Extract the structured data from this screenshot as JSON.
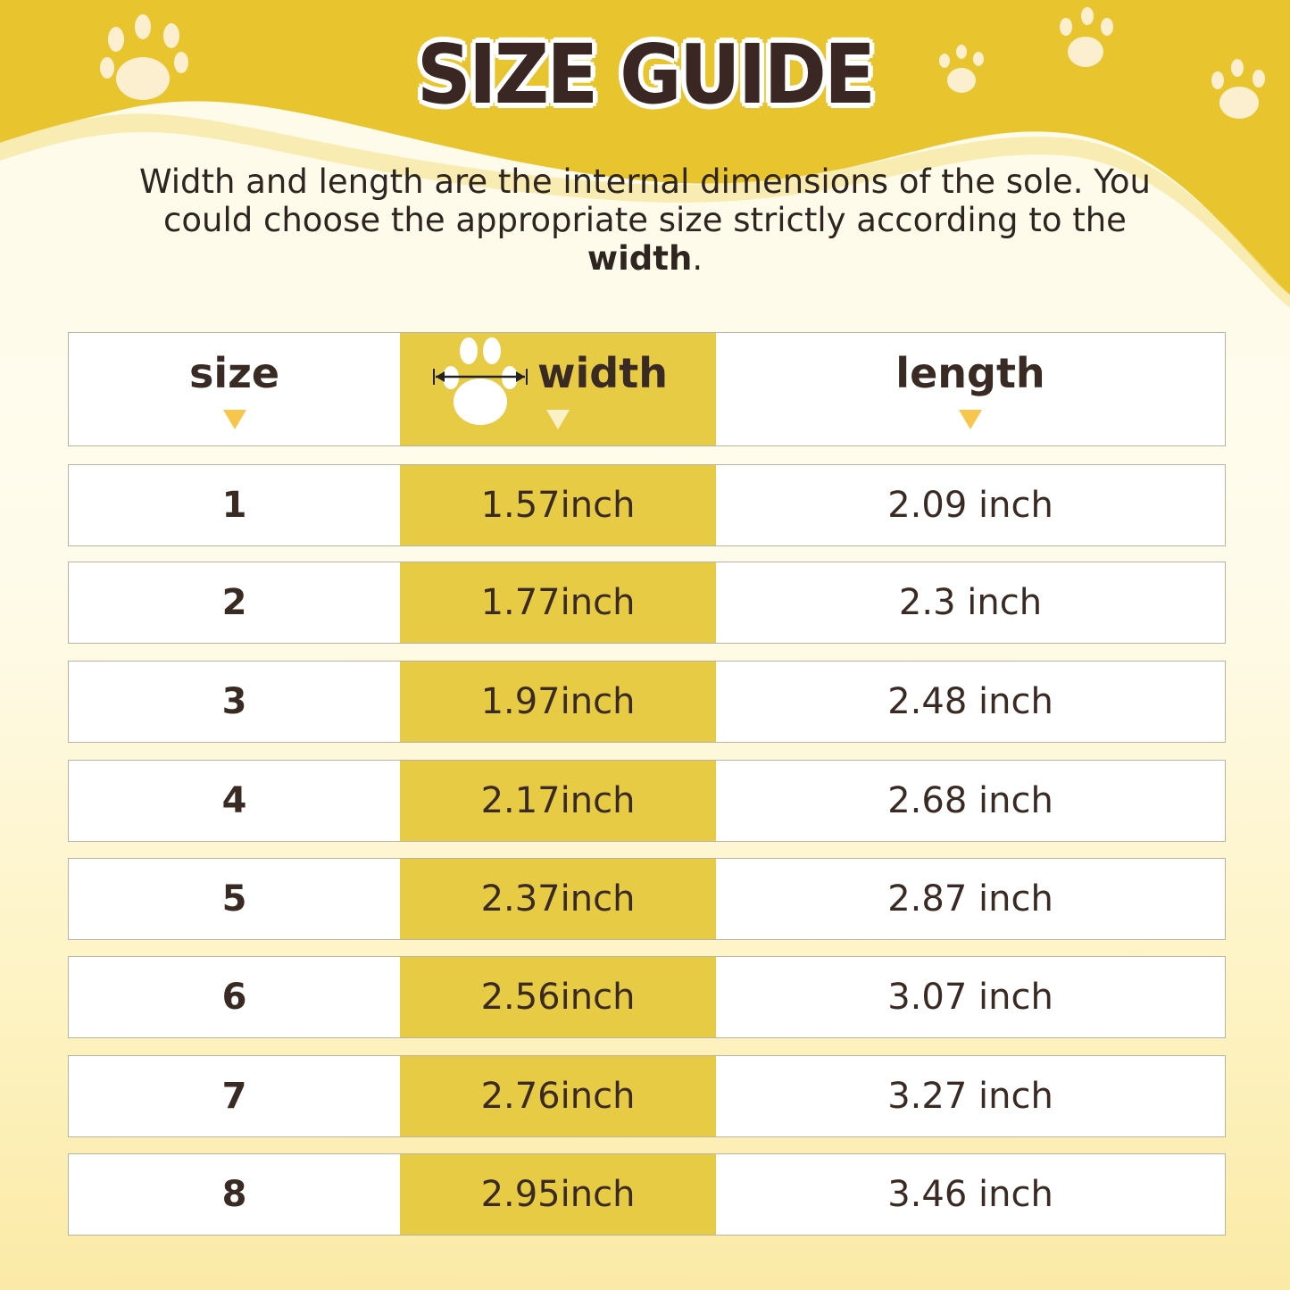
{
  "title": "SIZE GUIDE",
  "description": {
    "text": "Width and length are the internal dimensions of the sole. You could choose the appropriate size strictly according to the ",
    "bold": "width",
    "end": "."
  },
  "colors": {
    "top_band": "#e8c42e",
    "highlight_column": "#e8cb45",
    "text": "#3a2a24",
    "arrow": "#f7c64a"
  },
  "table": {
    "headers": [
      "size",
      "width",
      "length"
    ],
    "header_icon": "paw-width-arrow-icon",
    "rows": [
      {
        "size": "1",
        "width": "1.57inch",
        "length": "2.09 inch"
      },
      {
        "size": "2",
        "width": "1.77inch",
        "length": "2.3 inch"
      },
      {
        "size": "3",
        "width": "1.97inch",
        "length": "2.48 inch"
      },
      {
        "size": "4",
        "width": "2.17inch",
        "length": "2.68 inch"
      },
      {
        "size": "5",
        "width": "2.37inch",
        "length": "2.87 inch"
      },
      {
        "size": "6",
        "width": "2.56inch",
        "length": "3.07 inch"
      },
      {
        "size": "7",
        "width": "2.76inch",
        "length": "3.27 inch"
      },
      {
        "size": "8",
        "width": "2.95inch",
        "length": "3.46 inch"
      }
    ]
  }
}
